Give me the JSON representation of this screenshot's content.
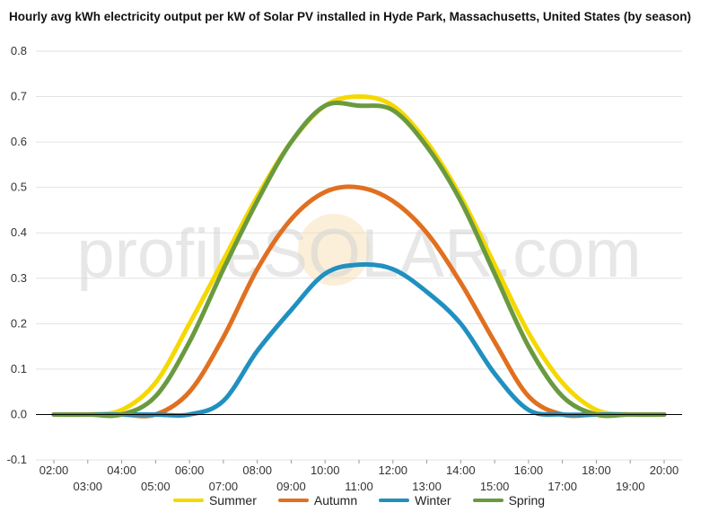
{
  "chart_data": {
    "type": "line",
    "title": "Hourly avg kWh electricity output per kW of Solar PV installed in Hyde Park, Massachusetts, United States (by season)",
    "xlabel": "",
    "ylabel": "",
    "ylim": [
      -0.1,
      0.8
    ],
    "yticks": [
      "0.8",
      "0.7",
      "0.6",
      "0.5",
      "0.4",
      "0.3",
      "0.2",
      "0.1",
      "0.0",
      "-0.1"
    ],
    "x": [
      "02:00",
      "03:00",
      "04:00",
      "05:00",
      "06:00",
      "07:00",
      "08:00",
      "09:00",
      "10:00",
      "11:00",
      "12:00",
      "13:00",
      "14:00",
      "15:00",
      "16:00",
      "17:00",
      "18:00",
      "19:00",
      "20:00"
    ],
    "grid": true,
    "legend_position": "bottom",
    "watermark": "profileSOLAR.com",
    "series": [
      {
        "name": "Summer",
        "color": "#f5d800",
        "values": [
          0,
          0,
          0.01,
          0.07,
          0.2,
          0.34,
          0.48,
          0.6,
          0.68,
          0.7,
          0.68,
          0.6,
          0.48,
          0.33,
          0.18,
          0.07,
          0.01,
          0,
          0
        ]
      },
      {
        "name": "Autumn",
        "color": "#e07020",
        "values": [
          0,
          0,
          0,
          0,
          0.05,
          0.17,
          0.32,
          0.43,
          0.49,
          0.5,
          0.47,
          0.4,
          0.29,
          0.16,
          0.04,
          0,
          0,
          0,
          0
        ]
      },
      {
        "name": "Winter",
        "color": "#2090c0",
        "values": [
          0,
          0,
          0,
          0,
          0,
          0.03,
          0.14,
          0.23,
          0.31,
          0.33,
          0.32,
          0.27,
          0.2,
          0.09,
          0.01,
          0,
          0,
          0,
          0
        ]
      },
      {
        "name": "Spring",
        "color": "#6a9a40",
        "values": [
          0,
          0,
          0,
          0.04,
          0.16,
          0.32,
          0.47,
          0.6,
          0.68,
          0.68,
          0.67,
          0.59,
          0.47,
          0.31,
          0.15,
          0.04,
          0,
          0,
          0
        ]
      }
    ]
  }
}
